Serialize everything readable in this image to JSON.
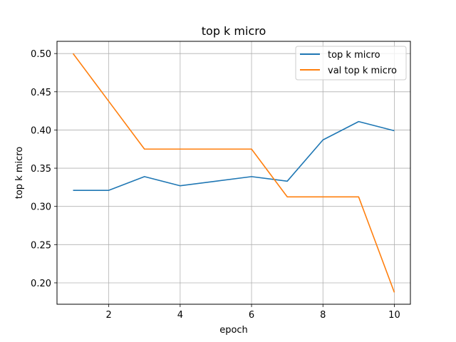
{
  "chart_data": {
    "type": "line",
    "title": "top k micro",
    "xlabel": "epoch",
    "ylabel": "top k micro",
    "xlim": [
      0.55,
      10.45
    ],
    "ylim": [
      0.172,
      0.516
    ],
    "xticks": [
      2,
      4,
      6,
      8,
      10
    ],
    "yticks": [
      0.2,
      0.25,
      0.3,
      0.35,
      0.4,
      0.45,
      0.5
    ],
    "grid": true,
    "legend_position": "top-right",
    "series": [
      {
        "name": "top k micro",
        "color": "#1f77b4",
        "x": [
          1,
          2,
          3,
          4,
          5,
          6,
          7,
          8,
          9,
          10
        ],
        "y": [
          0.321,
          0.321,
          0.339,
          0.327,
          0.333,
          0.339,
          0.333,
          0.387,
          0.411,
          0.399
        ]
      },
      {
        "name": "val top k micro",
        "color": "#ff7f0e",
        "x": [
          1,
          2,
          3,
          4,
          5,
          6,
          7,
          8,
          9,
          10
        ],
        "y": [
          0.5,
          0.4375,
          0.375,
          0.375,
          0.375,
          0.375,
          0.3125,
          0.3125,
          0.3125,
          0.1875
        ]
      }
    ]
  }
}
